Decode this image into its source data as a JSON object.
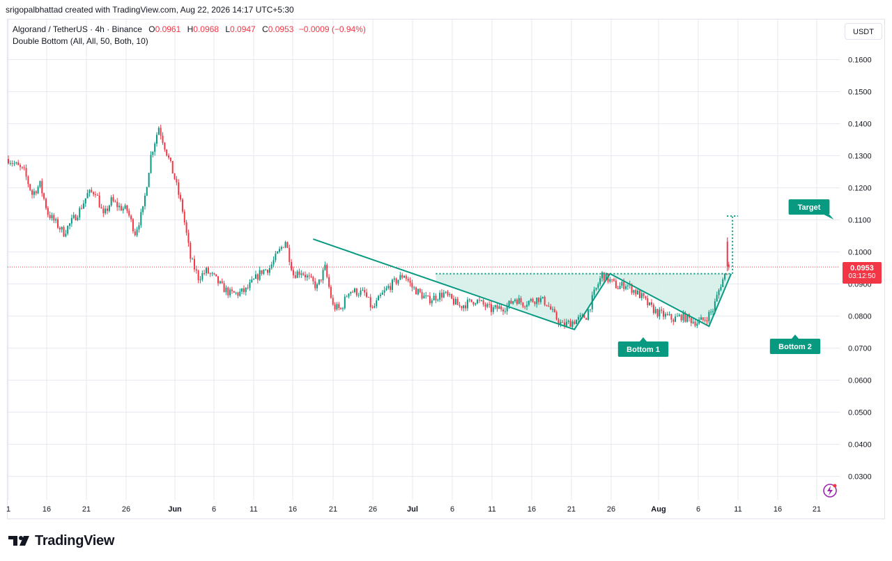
{
  "header": {
    "created_by": "srigopalbhattad created with TradingView.com, Aug 22, 2026 14:17 UTC+5:30"
  },
  "legend": {
    "symbol": "Algorand / TetherUS · 4h · Binance",
    "open_label": "O",
    "open": "0.0961",
    "high_label": "H",
    "high": "0.0968",
    "low_label": "L",
    "low": "0.0947",
    "close_label": "C",
    "close": "0.0953",
    "change": "−0.0009 (−0.94%)",
    "indicator": "Double Bottom (All, All, 50, Both, 10)"
  },
  "currency_button": "USDT",
  "price_badge": {
    "price": "0.0953",
    "countdown": "03:12:50"
  },
  "brand": "TradingView",
  "colors": {
    "up": "#089981",
    "down": "#f23645",
    "pattern": "#089981",
    "pattern_fill": "#d6efe9",
    "grid": "#e6e9ef",
    "current_price": "#f23645"
  },
  "chart_data": {
    "type": "candlestick",
    "timeframe": "4h",
    "y_axis": {
      "ticks": [
        "0.1600",
        "0.1500",
        "0.1400",
        "0.1300",
        "0.1200",
        "0.1100",
        "0.1000",
        "0.0900",
        "0.0800",
        "0.0700",
        "0.0600",
        "0.0500",
        "0.0400",
        "0.0300"
      ],
      "ylim": [
        0.0225,
        0.1725
      ]
    },
    "x_axis": {
      "ticks": [
        "1",
        "16",
        "21",
        "26",
        "Jun",
        "6",
        "11",
        "16",
        "21",
        "26",
        "Jul",
        "6",
        "11",
        "16",
        "21",
        "26",
        "Aug",
        "6",
        "11",
        "16",
        "21"
      ],
      "bold_ticks": [
        "Jun",
        "Jul",
        "Aug"
      ]
    },
    "price_series": [
      {
        "day": 0,
        "price": 0.129
      },
      {
        "day": 2,
        "price": 0.125
      },
      {
        "day": 3,
        "price": 0.118
      },
      {
        "day": 4,
        "price": 0.121
      },
      {
        "day": 5,
        "price": 0.112
      },
      {
        "day": 6,
        "price": 0.109
      },
      {
        "day": 7,
        "price": 0.106
      },
      {
        "day": 9,
        "price": 0.113
      },
      {
        "day": 10,
        "price": 0.118
      },
      {
        "day": 11,
        "price": 0.119
      },
      {
        "day": 12,
        "price": 0.111
      },
      {
        "day": 13,
        "price": 0.116
      },
      {
        "day": 14,
        "price": 0.114
      },
      {
        "day": 15,
        "price": 0.113
      },
      {
        "day": 16,
        "price": 0.106
      },
      {
        "day": 17,
        "price": 0.113
      },
      {
        "day": 18,
        "price": 0.13
      },
      {
        "day": 19,
        "price": 0.139
      },
      {
        "day": 20,
        "price": 0.131
      },
      {
        "day": 21,
        "price": 0.123
      },
      {
        "day": 22,
        "price": 0.113
      },
      {
        "day": 23,
        "price": 0.098
      },
      {
        "day": 24,
        "price": 0.092
      },
      {
        "day": 25,
        "price": 0.094
      },
      {
        "day": 26,
        "price": 0.092
      },
      {
        "day": 27,
        "price": 0.089
      },
      {
        "day": 28,
        "price": 0.087
      },
      {
        "day": 29,
        "price": 0.087
      },
      {
        "day": 30,
        "price": 0.088
      },
      {
        "day": 32,
        "price": 0.094
      },
      {
        "day": 33,
        "price": 0.095
      },
      {
        "day": 35,
        "price": 0.1035
      },
      {
        "day": 36,
        "price": 0.093
      },
      {
        "day": 37,
        "price": 0.094
      },
      {
        "day": 39,
        "price": 0.089
      },
      {
        "day": 40,
        "price": 0.095
      },
      {
        "day": 41,
        "price": 0.083
      },
      {
        "day": 42,
        "price": 0.082
      },
      {
        "day": 43,
        "price": 0.088
      },
      {
        "day": 45,
        "price": 0.087
      },
      {
        "day": 46,
        "price": 0.082
      },
      {
        "day": 47,
        "price": 0.086
      },
      {
        "day": 48,
        "price": 0.089
      },
      {
        "day": 50,
        "price": 0.093
      },
      {
        "day": 51,
        "price": 0.089
      },
      {
        "day": 53,
        "price": 0.085
      },
      {
        "day": 55,
        "price": 0.087
      },
      {
        "day": 57,
        "price": 0.083
      },
      {
        "day": 59,
        "price": 0.085
      },
      {
        "day": 61,
        "price": 0.082
      },
      {
        "day": 63,
        "price": 0.083
      },
      {
        "day": 64,
        "price": 0.0855
      },
      {
        "day": 65,
        "price": 0.084
      },
      {
        "day": 67,
        "price": 0.0855
      },
      {
        "day": 68,
        "price": 0.084
      },
      {
        "day": 69,
        "price": 0.08
      },
      {
        "day": 70,
        "price": 0.077
      },
      {
        "day": 71,
        "price": 0.078
      },
      {
        "day": 72,
        "price": 0.079
      },
      {
        "day": 73,
        "price": 0.08
      },
      {
        "day": 74,
        "price": 0.087
      },
      {
        "day": 75,
        "price": 0.093
      },
      {
        "day": 76,
        "price": 0.091
      },
      {
        "day": 77,
        "price": 0.089
      },
      {
        "day": 78,
        "price": 0.09
      },
      {
        "day": 79,
        "price": 0.088
      },
      {
        "day": 80,
        "price": 0.086
      },
      {
        "day": 81,
        "price": 0.083
      },
      {
        "day": 82,
        "price": 0.081
      },
      {
        "day": 83,
        "price": 0.08
      },
      {
        "day": 84,
        "price": 0.079
      },
      {
        "day": 85,
        "price": 0.08
      },
      {
        "day": 86,
        "price": 0.079
      },
      {
        "day": 87,
        "price": 0.078
      },
      {
        "day": 88,
        "price": 0.079
      },
      {
        "day": 89,
        "price": 0.082
      },
      {
        "day": 90,
        "price": 0.09
      },
      {
        "day": 91,
        "price": 0.0955
      }
    ],
    "last_candle": {
      "open": 0.0961,
      "high": 0.0968,
      "low": 0.0947,
      "close": 0.0953
    },
    "current_price": 0.0953,
    "pattern": {
      "name": "Double Bottom",
      "points": [
        {
          "label": "",
          "day": 38.5,
          "price": 0.104
        },
        {
          "label": "Bottom 1",
          "day": 71.5,
          "price": 0.0758
        },
        {
          "label": "",
          "day": 76.0,
          "price": 0.0932
        },
        {
          "label": "Bottom 2",
          "day": 88.5,
          "price": 0.0768
        },
        {
          "label": "",
          "day": 91.3,
          "price": 0.0932
        }
      ],
      "neckline": 0.0932,
      "neckline_start_day": 54,
      "target_label": "Target",
      "target": 0.1112
    }
  }
}
